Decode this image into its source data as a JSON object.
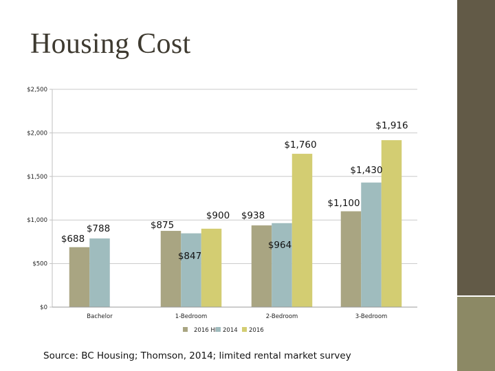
{
  "slide": {
    "title": "Housing Cost",
    "source": "Source: BC Housing; Thomson, 2014; limited rental market survey"
  },
  "colors": {
    "sidebar": "#625a47",
    "sidebar_accent": "#8c8965",
    "series": [
      "#a9a582",
      "#9fbcbe",
      "#d3cd72"
    ]
  },
  "chart_data": {
    "type": "bar",
    "categories": [
      "Bachelor",
      "1-Bedroom",
      "2-Bedroom",
      "3-Bedroom"
    ],
    "series": [
      {
        "name": "2016 HIL",
        "values": [
          688,
          875,
          938,
          1100
        ]
      },
      {
        "name": "2014",
        "values": [
          788,
          847,
          964,
          1430
        ]
      },
      {
        "name": "2016",
        "values": [
          null,
          900,
          1760,
          1916
        ]
      }
    ],
    "data_labels": [
      [
        "$688",
        "$788",
        null
      ],
      [
        "$875",
        "$847",
        "$900"
      ],
      [
        "$938",
        "$964",
        "$1,760"
      ],
      [
        "$1,100",
        "$1,430",
        "$1,916"
      ]
    ],
    "yticks": [
      "$0",
      "$500",
      "$1,000",
      "$1,500",
      "$2,000",
      "$2,500"
    ],
    "ylim": [
      0,
      2500
    ],
    "legend_position": "bottom"
  }
}
